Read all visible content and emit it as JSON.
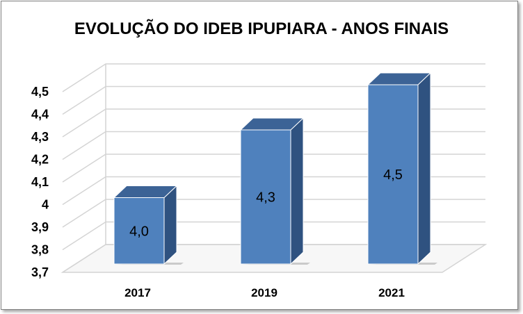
{
  "chart_data": {
    "type": "bar",
    "title": "EVOLUÇÃO DO IDEB IPUPIARA - ANOS FINAIS",
    "categories": [
      "2017",
      "2019",
      "2021"
    ],
    "values": [
      4.0,
      4.3,
      4.5
    ],
    "value_labels": [
      "4,0",
      "4,3",
      "4,5"
    ],
    "ylim": [
      3.7,
      4.5
    ],
    "yticks": [
      3.7,
      3.8,
      3.9,
      4.0,
      4.1,
      4.2,
      4.3,
      4.4,
      4.5
    ],
    "ytick_labels": [
      "3,7",
      "3,8",
      "3,9",
      "4",
      "4,1",
      "4,2",
      "4,3",
      "4,4",
      "4,5"
    ],
    "grid": true,
    "three_d": true,
    "bar_color": "#4f81bd",
    "bar_side_color": "#2f5280",
    "bar_top_color": "#3c6396"
  }
}
